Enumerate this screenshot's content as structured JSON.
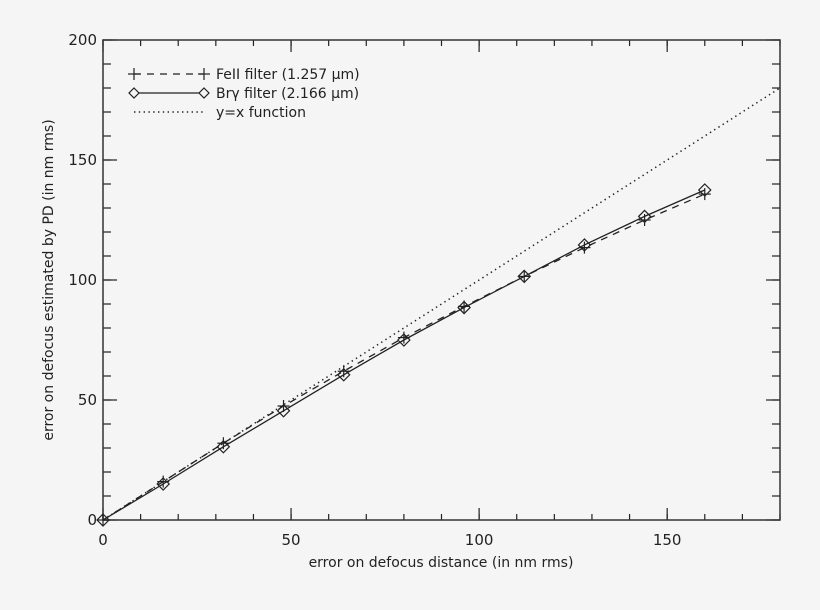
{
  "chart_data": {
    "type": "line",
    "title": "",
    "xlabel": "error on defocus distance (in nm rms)",
    "ylabel": "error on defocus estimated by PD (in nm rms)",
    "xlim": [
      0,
      180
    ],
    "ylim": [
      0,
      200
    ],
    "xticks": [
      0,
      50,
      100,
      150
    ],
    "yticks": [
      0,
      50,
      100,
      150,
      200
    ],
    "x_minor_step": 10,
    "y_minor_step": 10,
    "grid": false,
    "legend_position": "upper-left",
    "series": [
      {
        "name": "FeII filter (1.257 μm)",
        "style": "dashed",
        "marker": "plus",
        "x": [
          0,
          16,
          32,
          48,
          64,
          80,
          96,
          112,
          128,
          144,
          160
        ],
        "y": [
          0,
          16,
          32,
          47.5,
          62,
          76,
          89,
          101.5,
          113.5,
          125,
          135.8
        ]
      },
      {
        "name": "Brγ filter (2.166 μm)",
        "style": "solid",
        "marker": "diamond",
        "x": [
          0,
          16,
          32,
          48,
          64,
          80,
          96,
          112,
          128,
          144,
          160
        ],
        "y": [
          0,
          15,
          30.5,
          45.5,
          60.5,
          75,
          88.5,
          101.5,
          114.6,
          126.5,
          137.5
        ]
      },
      {
        "name": "y=x function",
        "style": "dotted",
        "marker": "none",
        "x": [
          0,
          180
        ],
        "y": [
          0,
          180
        ]
      }
    ]
  },
  "legend": {
    "items": [
      {
        "label": "FeII filter (1.257 μm)"
      },
      {
        "label": "Brγ filter (2.166 μm)"
      },
      {
        "label": "y=x function"
      }
    ]
  },
  "colors": {
    "background": "#f5f5f5",
    "ink": "#222222"
  }
}
